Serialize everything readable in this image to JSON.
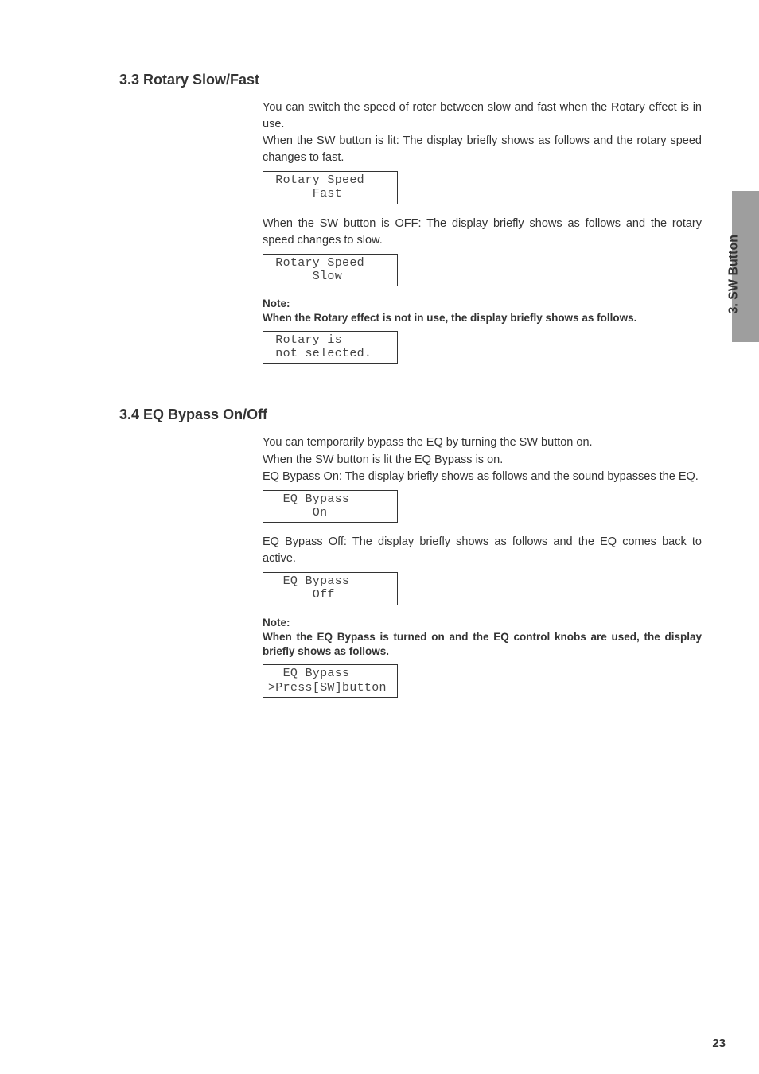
{
  "side": {
    "tab_label": "3. SW Button"
  },
  "page_number": "23",
  "sec33": {
    "heading": "3.3 Rotary Slow/Fast",
    "p1": "You can switch the speed of roter between slow and fast when the Rotary effect is in use.",
    "p2": "When the SW button is lit: The display briefly shows as follows and the rotary speed changes to fast.",
    "lcd1_l1": " Rotary Speed",
    "lcd1_l2": "      Fast",
    "p3": "When the SW button is OFF: The display briefly shows as follows and the rotary speed changes to slow.",
    "lcd2_l1": " Rotary Speed",
    "lcd2_l2": "      Slow",
    "note_label": "Note:",
    "note_text": "When the Rotary effect is not in use, the display briefly shows as follows.",
    "lcd3_l1": " Rotary is",
    "lcd3_l2": " not selected."
  },
  "sec34": {
    "heading": "3.4 EQ Bypass On/Off",
    "p1": "You can temporarily bypass the EQ by turning the SW button on.",
    "p2": "When the SW button is lit the EQ Bypass is on.",
    "p3": "EQ Bypass On: The display briefly shows as follows and the sound bypasses the EQ.",
    "lcd1_l1": "  EQ Bypass",
    "lcd1_l2": "      On",
    "p4": "EQ Bypass Off: The display briefly shows as follows and the EQ comes back to active.",
    "lcd2_l1": "  EQ Bypass",
    "lcd2_l2": "      Off",
    "note_label": "Note:",
    "note_text": "When the EQ Bypass is turned on and the EQ control knobs are used, the display briefly shows as follows.",
    "lcd3_l1": "  EQ Bypass",
    "lcd3_l2": ">Press[SW]button"
  }
}
